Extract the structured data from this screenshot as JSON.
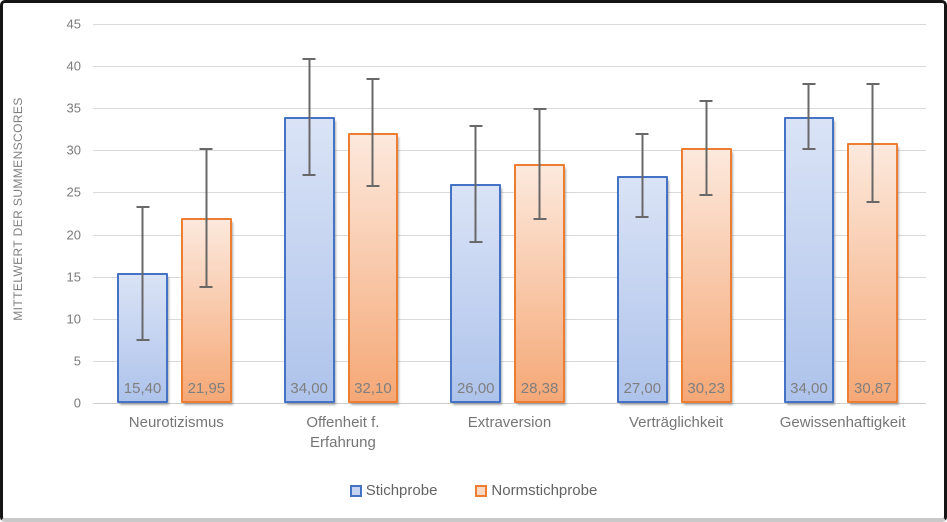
{
  "chart_data": {
    "type": "bar",
    "title": "",
    "ylabel": "MITTELWERT DER SUMMENSCORES",
    "xlabel": "",
    "ylim": [
      0,
      45
    ],
    "ytick_step": 5,
    "yticks": [
      0,
      5,
      10,
      15,
      20,
      25,
      30,
      35,
      40,
      45
    ],
    "grid": true,
    "legend_position": "bottom",
    "decimal_format": "comma",
    "categories": [
      "Neurotizismus",
      "Offenheit f.\nErfahrung",
      "Extraversion",
      "Verträglichkeit",
      "Gewissenhaftigkeit"
    ],
    "series": [
      {
        "name": "Stichprobe",
        "values": [
          15.4,
          34.0,
          26.0,
          27.0,
          34.0
        ],
        "value_labels": [
          "15,40",
          "34,00",
          "26,00",
          "27,00",
          "34,00"
        ],
        "error_plus": [
          8.0,
          7.0,
          7.0,
          5.0,
          4.0
        ],
        "error_minus": [
          8.0,
          7.0,
          7.0,
          5.0,
          4.0
        ],
        "border_color": "#4472c4",
        "fill_top": "#dae3f6",
        "fill_bottom": "#aec3eb",
        "swatch_fill": "#c6d3f0"
      },
      {
        "name": "Normstichprobe",
        "values": [
          21.95,
          32.1,
          28.38,
          30.23,
          30.87
        ],
        "value_labels": [
          "21,95",
          "32,10",
          "28,38",
          "30,23",
          "30,87"
        ],
        "error_plus": [
          8.3,
          6.5,
          6.6,
          5.7,
          7.1
        ],
        "error_minus": [
          8.3,
          6.5,
          6.6,
          5.7,
          7.1
        ],
        "border_color": "#ed7d31",
        "fill_top": "#fce9dd",
        "fill_bottom": "#f5a876",
        "swatch_fill": "#fad7c2"
      }
    ],
    "colors": {
      "gridline": "#d9d9d9",
      "error_bar": "#686868",
      "axis_text": "#7b7b7b",
      "data_label": "#7f7f7f"
    }
  }
}
